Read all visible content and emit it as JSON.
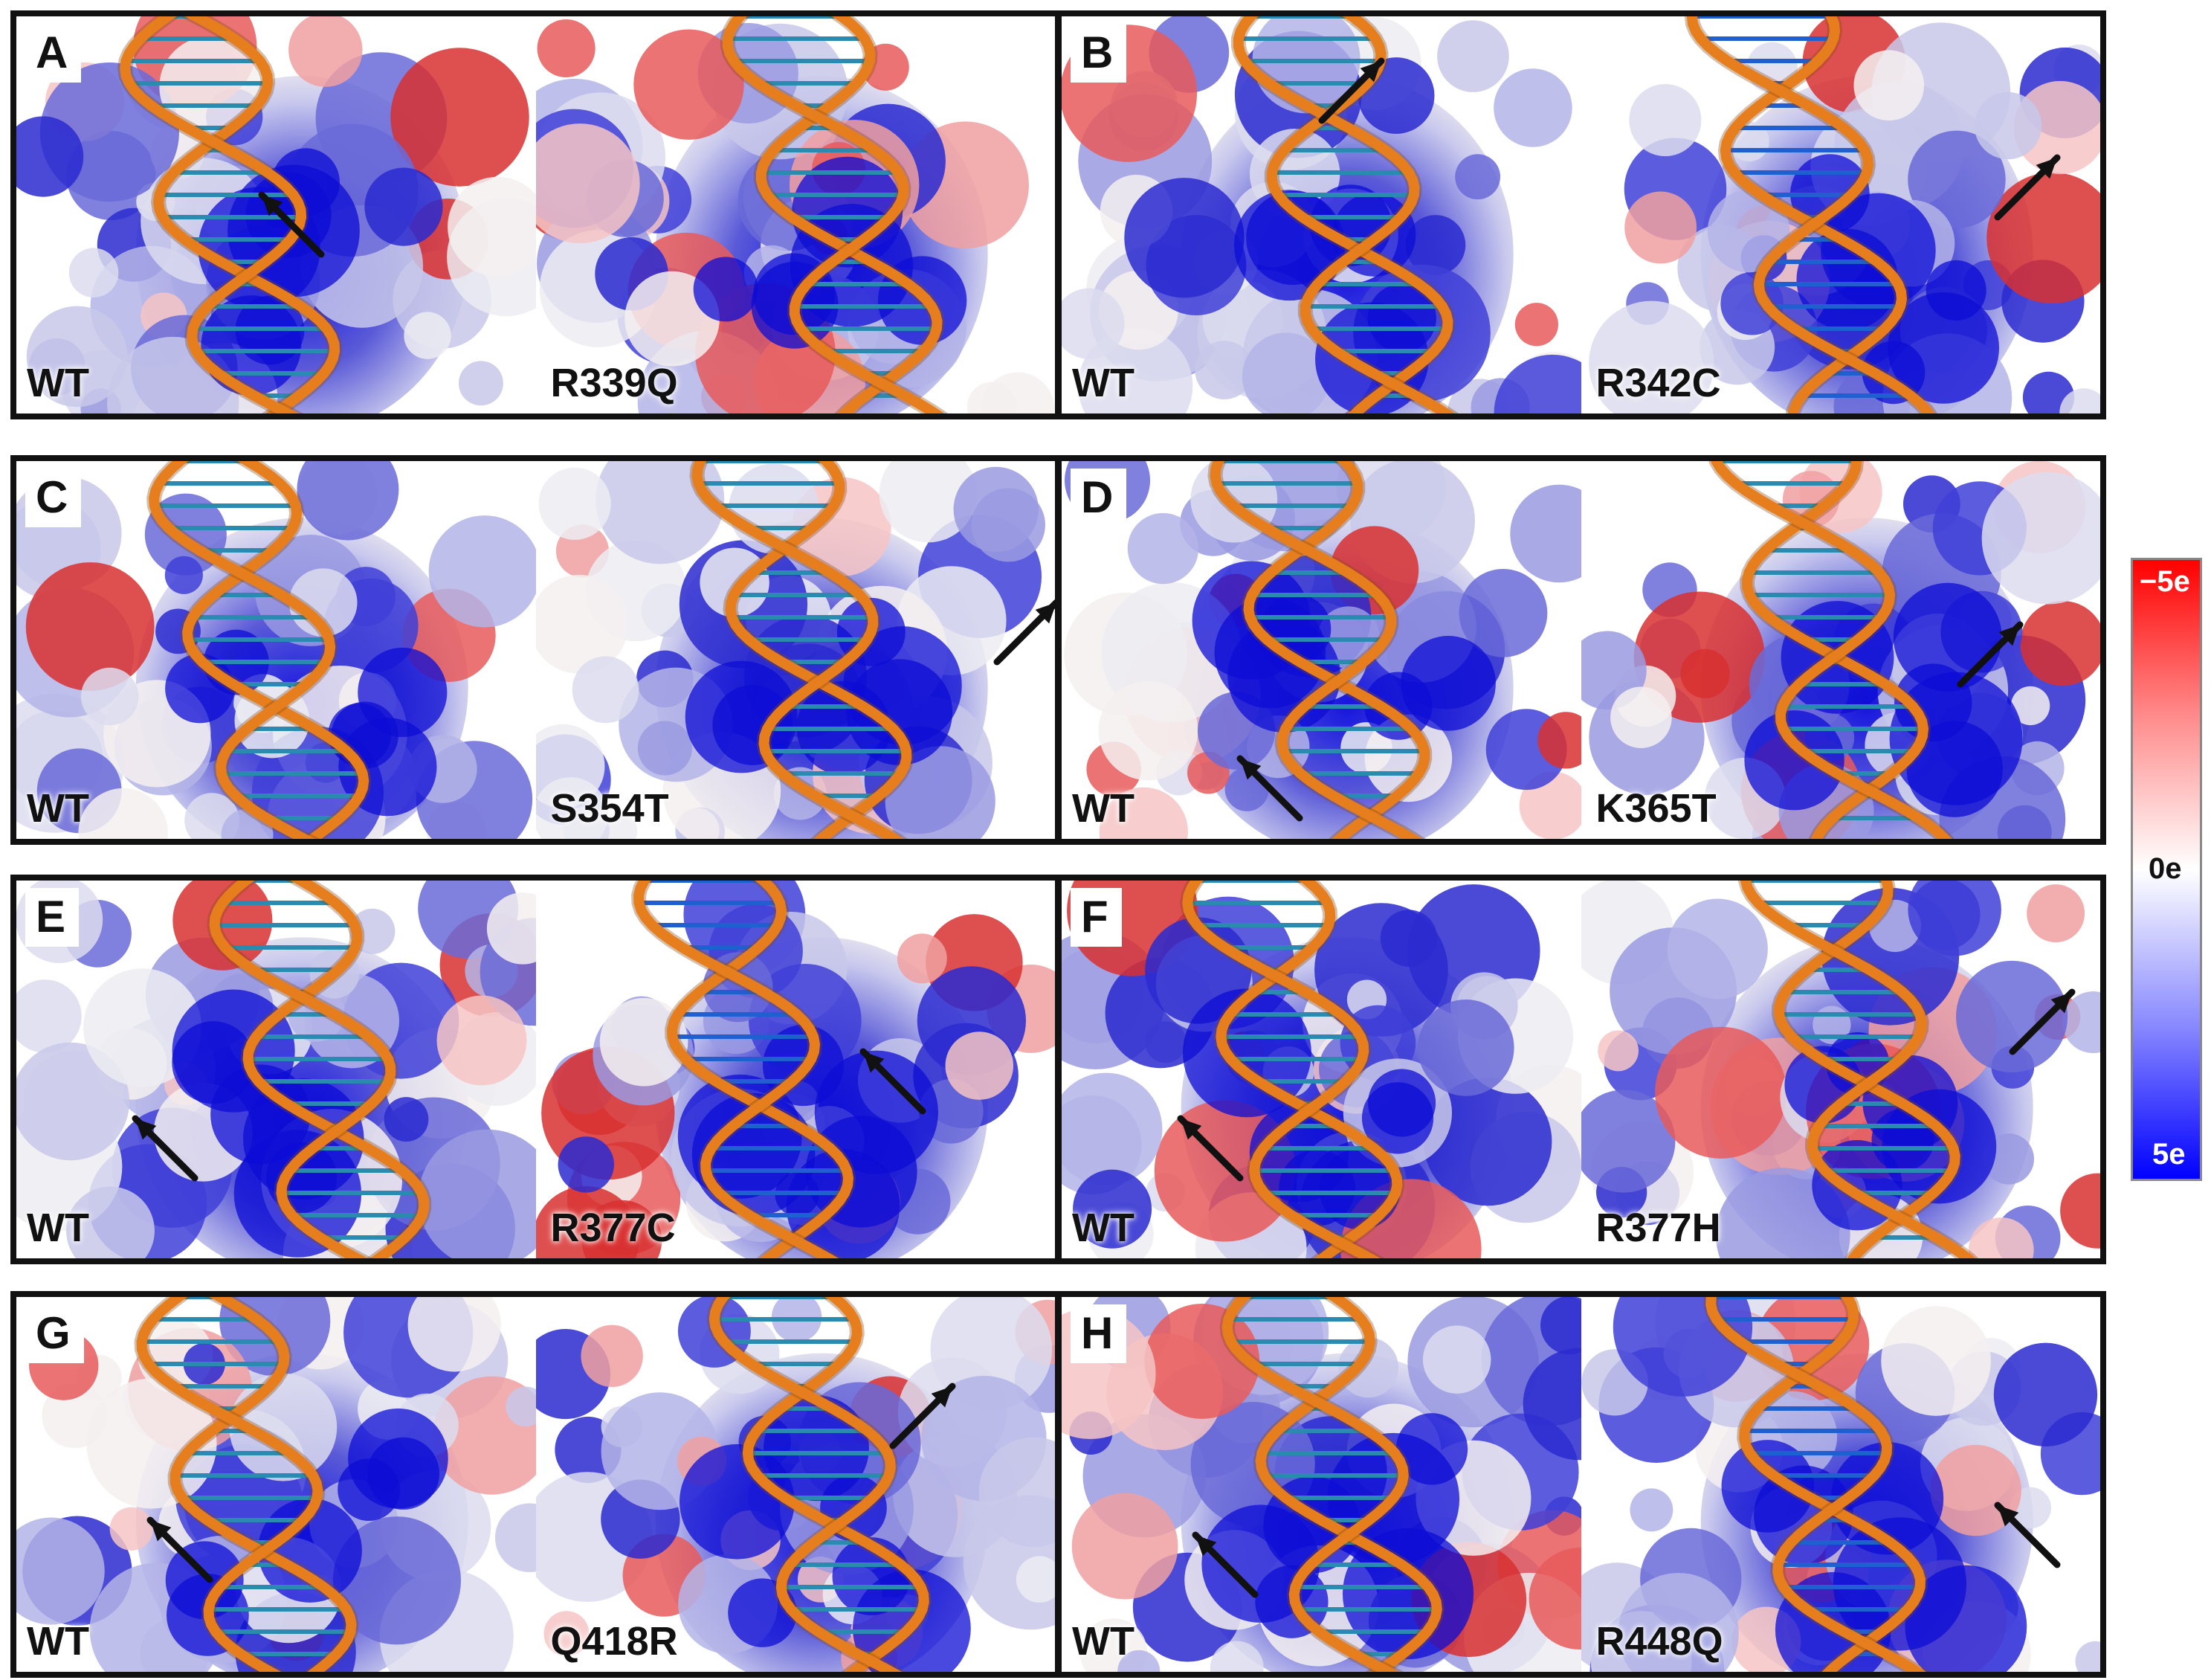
{
  "panels": [
    {
      "letter": "A",
      "wt_label": "WT",
      "mut_label": "R339Q"
    },
    {
      "letter": "B",
      "wt_label": "WT",
      "mut_label": "R342C"
    },
    {
      "letter": "C",
      "wt_label": "WT",
      "mut_label": "S354T"
    },
    {
      "letter": "D",
      "wt_label": "WT",
      "mut_label": "K365T"
    },
    {
      "letter": "E",
      "wt_label": "WT",
      "mut_label": "R377C"
    },
    {
      "letter": "F",
      "wt_label": "WT",
      "mut_label": "R377H"
    },
    {
      "letter": "G",
      "wt_label": "WT",
      "mut_label": "Q418R"
    },
    {
      "letter": "H",
      "wt_label": "WT",
      "mut_label": "R448Q"
    }
  ],
  "colorbar": {
    "top_label": "−5e",
    "mid_label": "0e",
    "bottom_label": "5e",
    "colors": {
      "negative": "#ff0000",
      "neutral": "#ffffff",
      "positive": "#0000ff"
    }
  },
  "colors": {
    "dna_backbone": "#e67e1e",
    "arrow": "#111111"
  }
}
